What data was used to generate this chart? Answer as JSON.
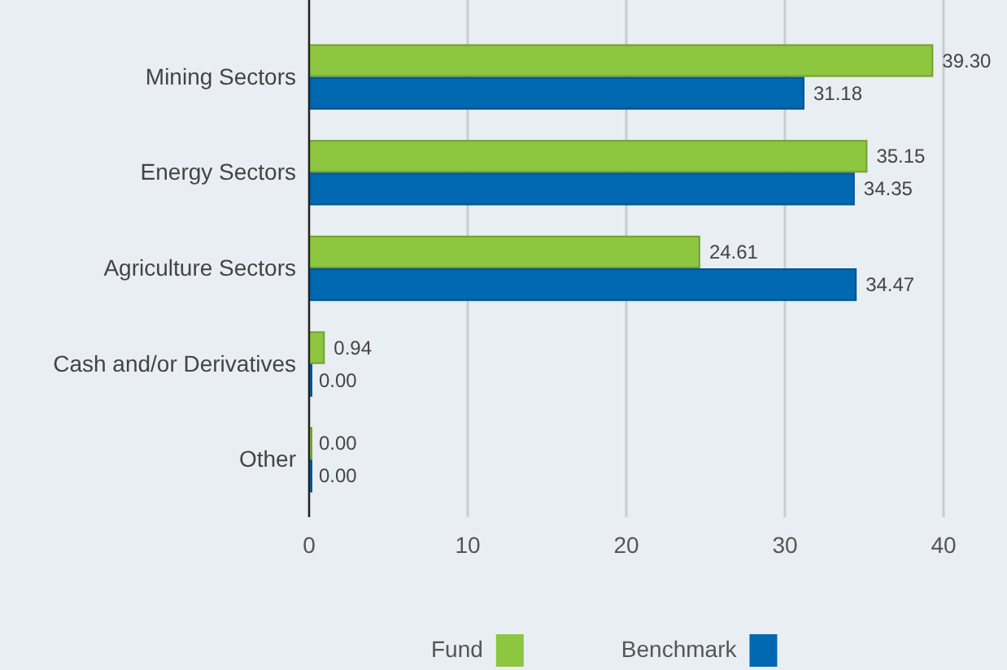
{
  "chart_data": {
    "type": "bar",
    "orientation": "horizontal",
    "categories": [
      "Mining Sectors",
      "Energy Sectors",
      "Agriculture Sectors",
      "Cash and/or Derivatives",
      "Other"
    ],
    "series": [
      {
        "name": "Fund",
        "color": "#8dc63f",
        "values": [
          39.3,
          35.15,
          24.61,
          0.94,
          0.0
        ],
        "value_labels": [
          "39.30",
          "35.15",
          "24.61",
          "0.94",
          "0.00"
        ]
      },
      {
        "name": "Benchmark",
        "color": "#0067b1",
        "values": [
          31.18,
          34.35,
          34.47,
          0.0,
          0.0
        ],
        "value_labels": [
          "31.18",
          "34.35",
          "34.47",
          "0.00",
          "0.00"
        ]
      }
    ],
    "xlim": [
      0,
      40
    ],
    "xticks": [
      0,
      10,
      20,
      30,
      40
    ],
    "grid": "x",
    "legend": "bottom"
  }
}
